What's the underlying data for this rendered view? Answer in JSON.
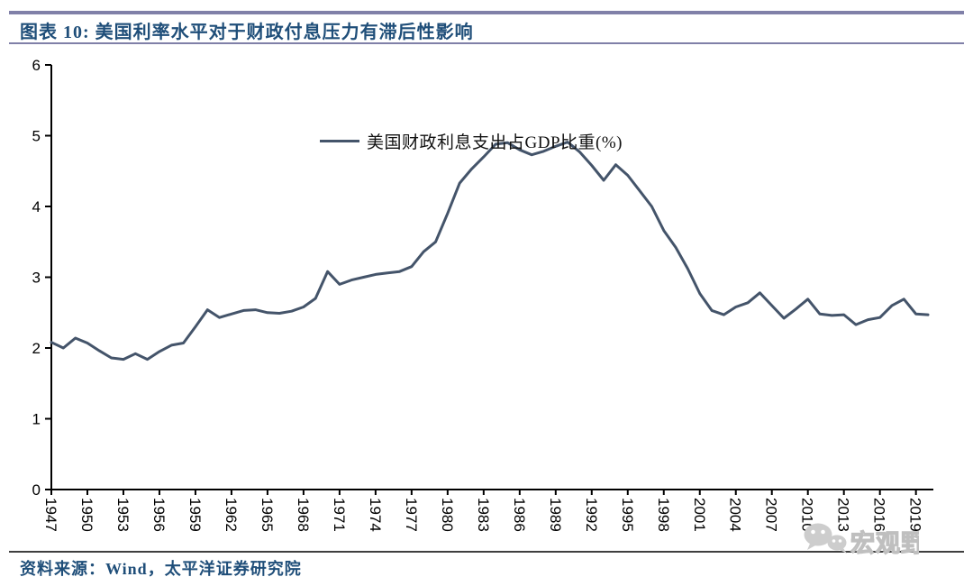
{
  "header": {
    "title": "图表 10:  美国利率水平对于财政付息压力有滞后性影响"
  },
  "legend": {
    "label": "美国财政利息支出占GDP比重(%)"
  },
  "footer": {
    "source": "资料来源：Wind，太平洋证券研究院"
  },
  "watermark": {
    "icon": "wechat-icon",
    "text": "宏观野望"
  },
  "colors": {
    "series": "#44546A",
    "title_text": "#1F4E79",
    "header_bar": "#8080A8",
    "axis": "#000000",
    "source_rule": "#3F3F3F",
    "watermark_fill": "#F2F2F2",
    "watermark_stroke": "#BFBFBF",
    "watermark_icon": "#CDCDCD"
  },
  "chart_data": {
    "type": "line",
    "title": "图表 10: 美国利率水平对于财政付息压力有滞后性影响",
    "xlabel": "",
    "ylabel": "",
    "grid": false,
    "legend_position": "top-center",
    "x_start": 1947,
    "x_step": 1,
    "x_end": 2020,
    "ylim": [
      0,
      6
    ],
    "y_ticks": [
      0,
      1,
      2,
      3,
      4,
      5,
      6
    ],
    "x_tick_labels": [
      "1947",
      "1950",
      "1953",
      "1956",
      "1959",
      "1962",
      "1965",
      "1968",
      "1971",
      "1974",
      "1977",
      "1980",
      "1983",
      "1986",
      "1989",
      "1992",
      "1995",
      "1998",
      "2001",
      "2004",
      "2007",
      "2010",
      "2013",
      "2016",
      "2019"
    ],
    "series": [
      {
        "name": "美国财政利息支出占GDP比重(%)",
        "values": [
          2.08,
          2.0,
          2.14,
          2.07,
          1.96,
          1.86,
          1.84,
          1.92,
          1.84,
          1.95,
          2.04,
          2.07,
          2.3,
          2.54,
          2.43,
          2.48,
          2.53,
          2.54,
          2.5,
          2.49,
          2.52,
          2.58,
          2.7,
          3.08,
          2.9,
          2.96,
          3.0,
          3.04,
          3.06,
          3.08,
          3.15,
          3.36,
          3.5,
          3.9,
          4.33,
          4.53,
          4.7,
          4.88,
          4.9,
          4.8,
          4.73,
          4.78,
          4.85,
          4.91,
          4.77,
          4.58,
          4.37,
          4.59,
          4.44,
          4.22,
          4.0,
          3.66,
          3.42,
          3.12,
          2.77,
          2.53,
          2.47,
          2.58,
          2.64,
          2.78,
          2.6,
          2.42,
          2.55,
          2.69,
          2.48,
          2.46,
          2.47,
          2.33,
          2.4,
          2.43,
          2.6,
          2.69,
          2.48,
          2.47
        ]
      }
    ]
  }
}
